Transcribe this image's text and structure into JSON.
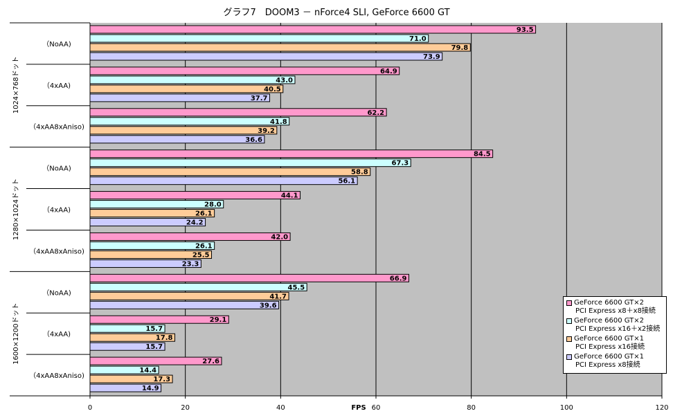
{
  "chart_data": {
    "type": "bar",
    "orientation": "horizontal",
    "title": "グラフ7　DOOM3 － nForce4 SLI, GeForce 6600 GT",
    "xlabel": "FPS",
    "xlim": [
      0,
      120
    ],
    "xticks": [
      "0",
      "20",
      "40",
      "60",
      "80",
      "100",
      "120"
    ],
    "grid": true,
    "legend_position": "bottom-right",
    "groups": [
      "1024×768ドット",
      "1280×1024ドット",
      "1600×1200ドット"
    ],
    "subcategories": [
      "（NoAA)",
      "（4xAA)",
      "（4xAA8xAniso)"
    ],
    "series": [
      {
        "name_line1": "GeForce 6600 GT×2",
        "name_line2": "PCI Express x8＋x8接続",
        "color": "#ff99cc",
        "values": [
          93.5,
          64.9,
          62.2,
          84.5,
          44.1,
          42.0,
          66.9,
          29.1,
          27.6
        ],
        "labels": [
          "93.5",
          "64.9",
          "62.2",
          "84.5",
          "44.1",
          "42.0",
          "66.9",
          "29.1",
          "27.6"
        ]
      },
      {
        "name_line1": "GeForce 6600 GT×2",
        "name_line2": "PCI Express x16＋x2接続",
        "color": "#ccffff",
        "values": [
          71.0,
          43.0,
          41.8,
          67.3,
          28.0,
          26.1,
          45.5,
          15.7,
          14.4
        ],
        "labels": [
          "71.0",
          "43.0",
          "41.8",
          "67.3",
          "28.0",
          "26.1",
          "45.5",
          "15.7",
          "14.4"
        ]
      },
      {
        "name_line1": "GeForce 6600 GT×1",
        "name_line2": "PCI Express x16接続",
        "color": "#ffcc99",
        "values": [
          79.8,
          40.5,
          39.2,
          58.8,
          26.1,
          25.5,
          41.7,
          17.8,
          17.3
        ],
        "labels": [
          "79.8",
          "40.5",
          "39.2",
          "58.8",
          "26.1",
          "25.5",
          "41.7",
          "17.8",
          "17.3"
        ]
      },
      {
        "name_line1": "GeForce 6600 GT×1",
        "name_line2": "PCI Express x8接続",
        "color": "#ccccff",
        "values": [
          73.9,
          37.7,
          36.6,
          56.1,
          24.2,
          23.3,
          39.6,
          15.7,
          14.9
        ],
        "labels": [
          "73.9",
          "37.7",
          "36.6",
          "56.1",
          "24.2",
          "23.3",
          "39.6",
          "15.7",
          "14.9"
        ]
      }
    ]
  },
  "colors": {
    "plot_background": "#c0c0c0",
    "gridline": "#000000"
  }
}
